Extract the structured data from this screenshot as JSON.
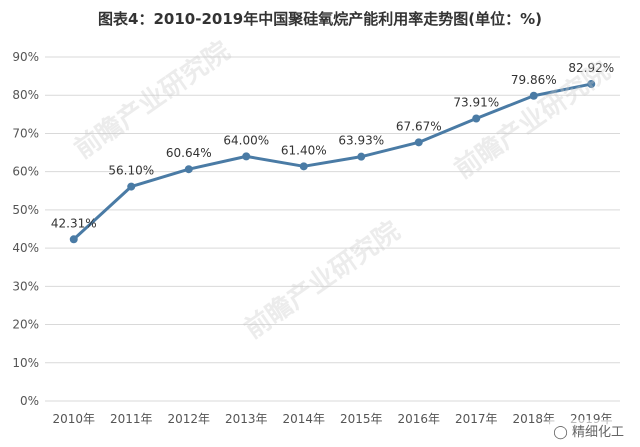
{
  "chart_data": {
    "type": "line",
    "title": "图表4：2010-2019年中国聚硅氧烷产能利用率走势图(单位：%)",
    "categories": [
      "2010年",
      "2011年",
      "2012年",
      "2013年",
      "2014年",
      "2015年",
      "2016年",
      "2017年",
      "2018年",
      "2019年"
    ],
    "series": [
      {
        "values": [
          42.31,
          56.1,
          60.64,
          64.0,
          61.4,
          63.93,
          67.67,
          73.91,
          79.86,
          82.92
        ]
      }
    ],
    "data_labels": [
      "42.31%",
      "56.10%",
      "60.64%",
      "64.00%",
      "61.40%",
      "63.93%",
      "67.67%",
      "73.91%",
      "79.86%",
      "82.92%"
    ],
    "y_ticks": [
      "0%",
      "10%",
      "20%",
      "30%",
      "40%",
      "50%",
      "60%",
      "70%",
      "80%",
      "90%"
    ],
    "ylim": [
      0,
      90
    ],
    "xlabel": "",
    "ylabel": "",
    "grid": true,
    "line_color": "#4a7ba5"
  },
  "watermark": "前瞻产业研究院",
  "credit": "精细化工"
}
